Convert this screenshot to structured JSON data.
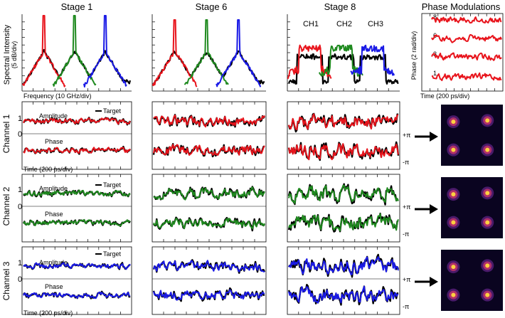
{
  "chart_data": {
    "type": "line",
    "title": "",
    "stages": [
      "Stage 1",
      "Stage 6",
      "Stage 8"
    ],
    "spectrum": {
      "ylabel": "Spectral Intensity",
      "yunit": "(5 dB/div)",
      "xlabel": "Frequency (10 GHz/div)",
      "channel_labels": [
        "CH1",
        "CH2",
        "CH3"
      ],
      "series": [
        {
          "name": "CH1",
          "color": "#e8141c"
        },
        {
          "name": "CH2",
          "color": "#1f8a1f"
        },
        {
          "name": "CH3",
          "color": "#1a1ae6"
        },
        {
          "name": "Target",
          "color": "#000000"
        }
      ]
    },
    "phase_modulations": {
      "title": "Phase Modulations",
      "ylabel": "Phase (2 rad/div)",
      "xlabel": "Time (200 ps/div)",
      "trace_labels": [
        "8",
        "6",
        "3",
        "1"
      ],
      "color": "#e8141c"
    },
    "channels": [
      {
        "name": "Channel 1",
        "color": "#e8141c"
      },
      {
        "name": "Channel 2",
        "color": "#1f8a1f"
      },
      {
        "name": "Channel 3",
        "color": "#1a1ae6"
      }
    ],
    "waveform_labels": {
      "amplitude": "Amplitude",
      "phase": "Phase",
      "target": "Target",
      "zero": "0",
      "one": "1",
      "plus_pi": "+π",
      "minus_pi": "-π",
      "xlabel": "Time (200 ps/div)"
    }
  }
}
